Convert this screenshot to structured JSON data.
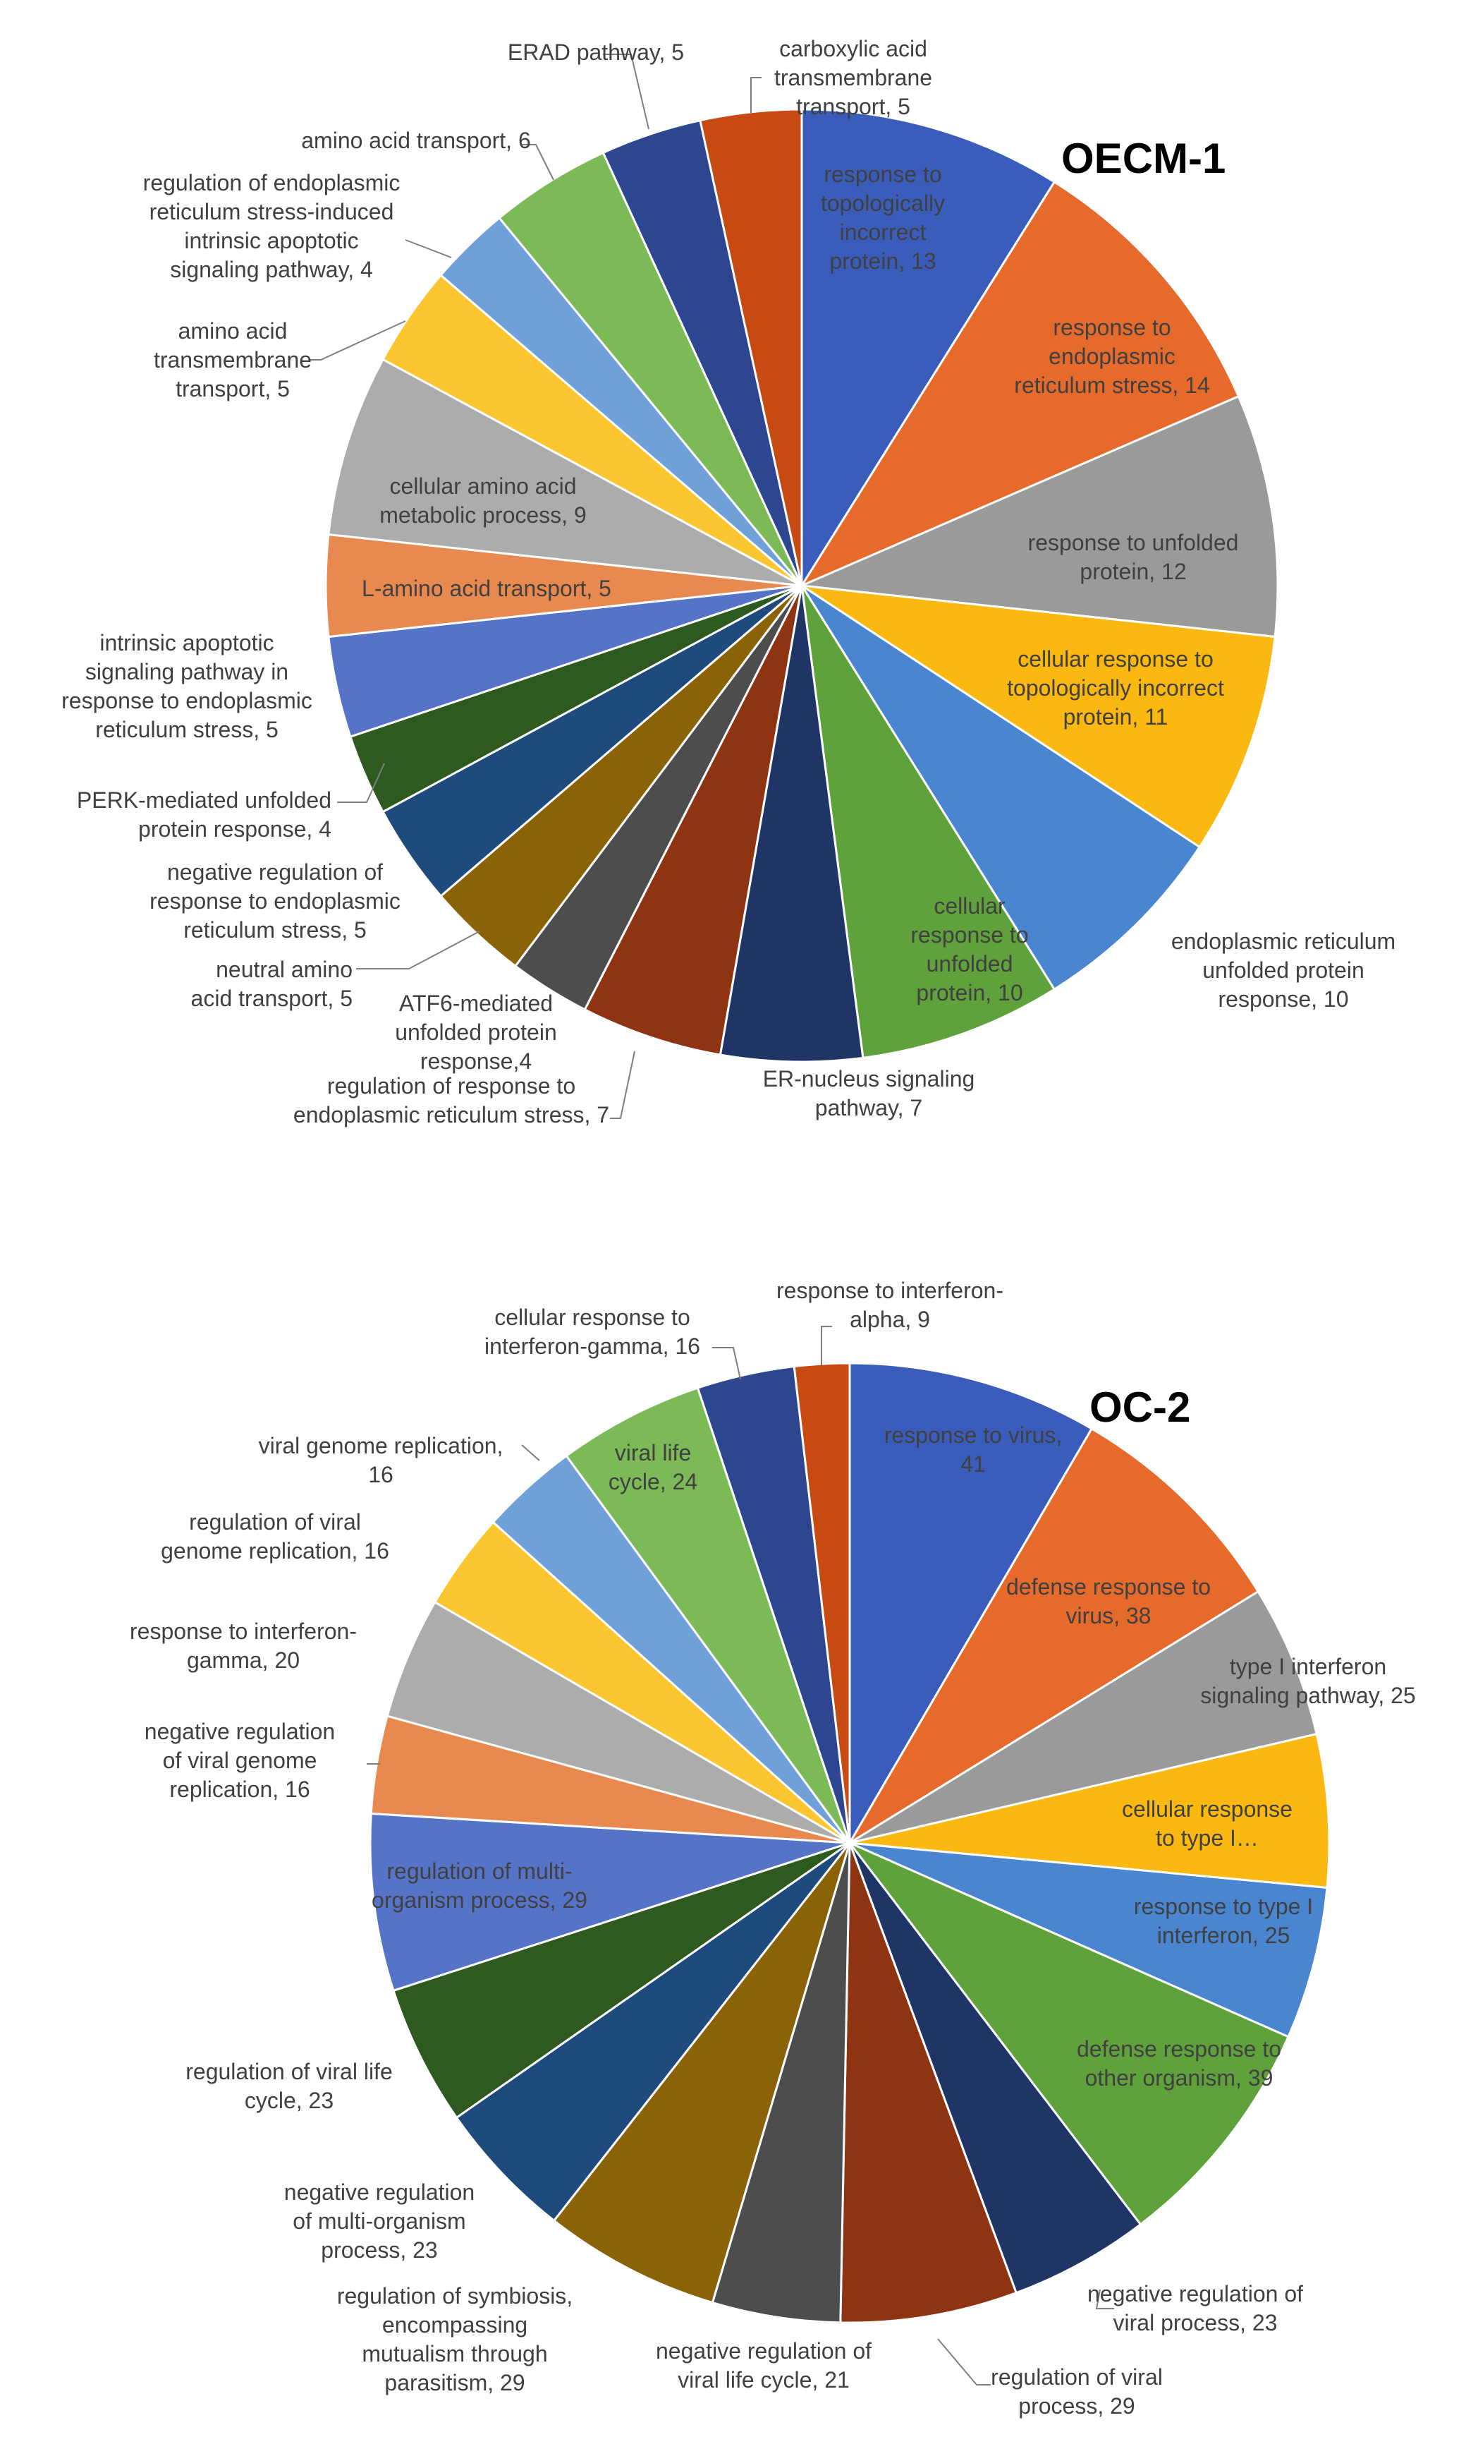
{
  "chart_data": [
    {
      "type": "pie",
      "title": "OECM-1",
      "slices": [
        {
          "label": [
            "response to",
            "topologically",
            "incorrect",
            "protein, 13"
          ],
          "value": 13,
          "color": "#3a5cba"
        },
        {
          "label": [
            "response to",
            "endoplasmic",
            "reticulum stress, 14"
          ],
          "value": 14,
          "color": "#e56a2b"
        },
        {
          "label": [
            "response to unfolded",
            "protein, 12"
          ],
          "value": 12,
          "color": "#9a9a9a"
        },
        {
          "label": [
            "cellular response to",
            "topologically incorrect",
            "protein, 11"
          ],
          "value": 11,
          "color": "#fbb811"
        },
        {
          "label": [
            "endoplasmic reticulum",
            "unfolded protein",
            "response, 10"
          ],
          "value": 10,
          "color": "#4a86cf"
        },
        {
          "label": [
            "cellular",
            "response to",
            "unfolded",
            "protein, 10"
          ],
          "value": 10,
          "color": "#5fa13a"
        },
        {
          "label": [
            "ER-nucleus signaling",
            "pathway, 7"
          ],
          "value": 7,
          "color": "#1f3565"
        },
        {
          "label": [
            "regulation of response to",
            "endoplasmic reticulum stress, 7"
          ],
          "value": 7,
          "color": "#8e3412"
        },
        {
          "label": [
            "ATF6-mediated",
            "unfolded protein",
            "response,4"
          ],
          "value": 4,
          "color": "#4d4d4d"
        },
        {
          "label": [
            "neutral amino",
            "acid transport, 5"
          ],
          "value": 5,
          "color": "#8a6308"
        },
        {
          "label": [
            "negative regulation of",
            "response to endoplasmic",
            "reticulum stress, 5"
          ],
          "value": 5,
          "color": "#1e4a7c"
        },
        {
          "label": [
            "PERK-mediated unfolded",
            "protein response, 4"
          ],
          "value": 4,
          "color": "#2e5a20"
        },
        {
          "label": [
            "intrinsic apoptotic",
            "signaling pathway in",
            "response to endoplasmic",
            "reticulum stress, 5"
          ],
          "value": 5,
          "color": "#5574c8"
        },
        {
          "label": [
            "L-amino acid transport, 5"
          ],
          "value": 5,
          "color": "#e88a4f"
        },
        {
          "label": [
            "cellular amino acid",
            "metabolic process, 9"
          ],
          "value": 9,
          "color": "#acacac"
        },
        {
          "label": [
            "amino acid",
            "transmembrane",
            "transport, 5"
          ],
          "value": 5,
          "color": "#fcc630"
        },
        {
          "label": [
            "regulation of endoplasmic",
            "reticulum stress-induced",
            "intrinsic apoptotic",
            "signaling pathway, 4"
          ],
          "value": 4,
          "color": "#6fa0d8"
        },
        {
          "label": [
            "amino acid transport, 6"
          ],
          "value": 6,
          "color": "#7bba56"
        },
        {
          "label": [
            "ERAD pathway, 5"
          ],
          "value": 5,
          "color": "#2e4690"
        },
        {
          "label": [
            "carboxylic acid",
            "transmembrane",
            "transport, 5"
          ],
          "value": 5,
          "color": "#c74a13"
        }
      ]
    },
    {
      "type": "pie",
      "title": "OC-2",
      "slices": [
        {
          "label": [
            "response to virus,",
            "41"
          ],
          "value": 41,
          "color": "#3a5cba"
        },
        {
          "label": [
            "defense response to",
            "virus, 38"
          ],
          "value": 38,
          "color": "#e56a2b"
        },
        {
          "label": [
            "type I interferon",
            "signaling pathway, 25"
          ],
          "value": 25,
          "color": "#9a9a9a"
        },
        {
          "label": [
            "cellular response",
            "to type I…"
          ],
          "value": 25,
          "color": "#fbb811"
        },
        {
          "label": [
            "response to type I",
            "interferon, 25"
          ],
          "value": 25,
          "color": "#4a86cf"
        },
        {
          "label": [
            "defense response to",
            "other organism, 39"
          ],
          "value": 39,
          "color": "#5fa13a"
        },
        {
          "label": [
            "negative regulation of",
            "viral process, 23"
          ],
          "value": 23,
          "color": "#1f3565"
        },
        {
          "label": [
            "regulation of viral",
            "process, 29"
          ],
          "value": 29,
          "color": "#8e3412"
        },
        {
          "label": [
            "negative regulation of",
            "viral life cycle, 21"
          ],
          "value": 21,
          "color": "#4d4d4d"
        },
        {
          "label": [
            "regulation of symbiosis,",
            "encompassing",
            "mutualism through",
            "parasitism, 29"
          ],
          "value": 29,
          "color": "#8a6308"
        },
        {
          "label": [
            "negative regulation",
            "of multi-organism",
            "process, 23"
          ],
          "value": 23,
          "color": "#1e4a7c"
        },
        {
          "label": [
            "regulation of viral life",
            "cycle, 23"
          ],
          "value": 23,
          "color": "#2e5a20"
        },
        {
          "label": [
            "regulation of multi-",
            "organism process, 29"
          ],
          "value": 29,
          "color": "#5574c8"
        },
        {
          "label": [
            "negative regulation",
            "of viral genome",
            "replication, 16"
          ],
          "value": 16,
          "color": "#e88a4f"
        },
        {
          "label": [
            "response to interferon-",
            "gamma, 20"
          ],
          "value": 20,
          "color": "#acacac"
        },
        {
          "label": [
            "regulation of viral",
            "genome replication, 16"
          ],
          "value": 16,
          "color": "#fcc630"
        },
        {
          "label": [
            "viral genome replication,",
            "16"
          ],
          "value": 16,
          "color": "#6fa0d8"
        },
        {
          "label": [
            "viral life",
            "cycle, 24"
          ],
          "value": 24,
          "color": "#7bba56"
        },
        {
          "label": [
            "cellular response to",
            "interferon-gamma, 16"
          ],
          "value": 16,
          "color": "#2e4690"
        },
        {
          "label": [
            "response to interferon-",
            "alpha, 9"
          ],
          "value": 9,
          "color": "#c74a13"
        }
      ]
    }
  ]
}
